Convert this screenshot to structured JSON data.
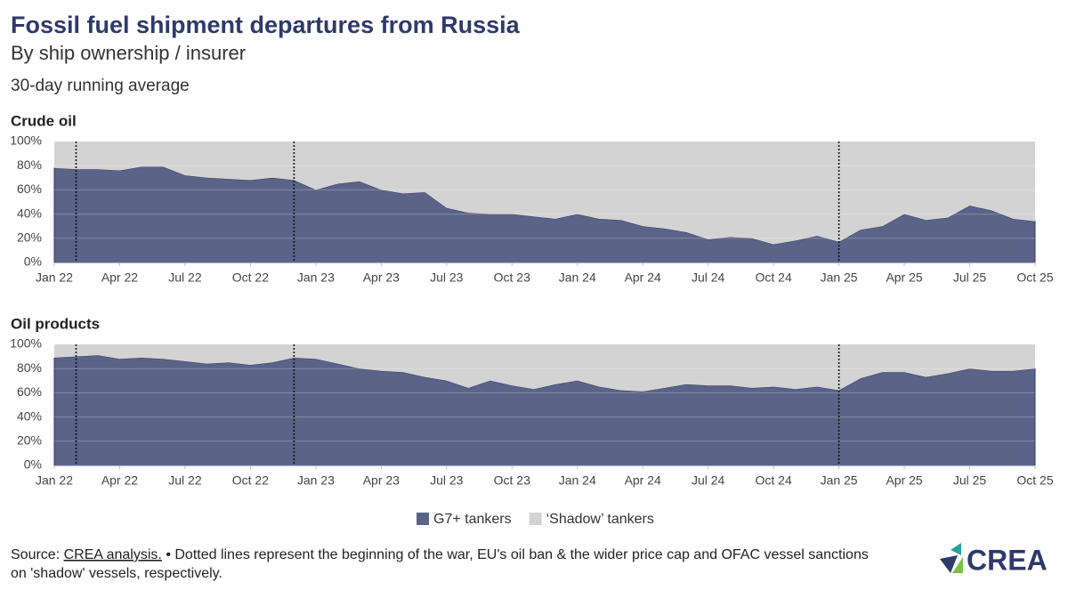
{
  "title": "Fossil fuel shipment departures from Russia",
  "subtitle": "By ship ownership / insurer",
  "note": "30-day running average",
  "source_label": "Source:",
  "source_link": "CREA analysis.",
  "source_text": "• Dotted lines represent the beginning of the war, EU's oil ban & the wider price cap and OFAC vessel sanctions on 'shadow' vessels, respectively.",
  "logo": "CREA",
  "chart_data": [
    {
      "type": "stacked_area",
      "title": "Crude oil",
      "x": [
        "2022-01",
        "2022-02",
        "2022-03",
        "2022-04",
        "2022-05",
        "2022-06",
        "2022-07",
        "2022-08",
        "2022-09",
        "2022-10",
        "2022-11",
        "2022-12",
        "2023-01",
        "2023-02",
        "2023-03",
        "2023-04",
        "2023-05",
        "2023-06",
        "2023-07",
        "2023-08",
        "2023-09",
        "2023-10",
        "2023-11",
        "2023-12",
        "2024-01",
        "2024-02",
        "2024-03",
        "2024-04",
        "2024-05",
        "2024-06",
        "2024-07",
        "2024-08",
        "2024-09",
        "2024-10",
        "2024-11",
        "2024-12",
        "2025-01",
        "2025-02",
        "2025-03",
        "2025-04",
        "2025-05",
        "2025-06",
        "2025-07",
        "2025-08",
        "2025-09",
        "2025-10"
      ],
      "series": [
        {
          "name": "G7+ tankers",
          "color": "#5b6388",
          "values": [
            78,
            77,
            77,
            76,
            79,
            79,
            72,
            70,
            69,
            68,
            70,
            68,
            60,
            65,
            67,
            60,
            57,
            58,
            45,
            41,
            40,
            40,
            38,
            36,
            40,
            36,
            35,
            30,
            28,
            25,
            19,
            21,
            20,
            15,
            18,
            22,
            17,
            27,
            30,
            40,
            35,
            37,
            47,
            43,
            36,
            34
          ]
        },
        {
          "name": "‘Shadow’ tankers",
          "color": "#d3d3d3",
          "values": [
            22,
            23,
            23,
            24,
            21,
            21,
            28,
            30,
            31,
            32,
            30,
            32,
            40,
            35,
            33,
            40,
            43,
            42,
            55,
            59,
            60,
            60,
            62,
            64,
            60,
            64,
            65,
            70,
            72,
            75,
            81,
            79,
            80,
            85,
            82,
            78,
            83,
            73,
            70,
            60,
            65,
            63,
            53,
            57,
            64,
            66
          ]
        }
      ],
      "events": [
        "2022-02",
        "2022-12",
        "2025-01"
      ],
      "xlim": [
        "2022-01",
        "2025-10"
      ],
      "xticks": [
        {
          "value": "2022-01",
          "label": "Jan 22"
        },
        {
          "value": "2022-04",
          "label": "Apr 22"
        },
        {
          "value": "2022-07",
          "label": "Jul 22"
        },
        {
          "value": "2022-10",
          "label": "Oct 22"
        },
        {
          "value": "2023-01",
          "label": "Jan 23"
        },
        {
          "value": "2023-04",
          "label": "Apr 23"
        },
        {
          "value": "2023-07",
          "label": "Jul 23"
        },
        {
          "value": "2023-10",
          "label": "Oct 23"
        },
        {
          "value": "2024-01",
          "label": "Jan 24"
        },
        {
          "value": "2024-04",
          "label": "Apr 24"
        },
        {
          "value": "2024-07",
          "label": "Jul 24"
        },
        {
          "value": "2024-10",
          "label": "Oct 24"
        },
        {
          "value": "2025-01",
          "label": "Jan 25"
        },
        {
          "value": "2025-04",
          "label": "Apr 25"
        },
        {
          "value": "2025-07",
          "label": "Jul 25"
        },
        {
          "value": "2025-10",
          "label": "Oct 25"
        }
      ],
      "ylim": [
        0,
        100
      ],
      "yticks": [
        {
          "value": 0,
          "label": "0%"
        },
        {
          "value": 20,
          "label": "20%"
        },
        {
          "value": 40,
          "label": "40%"
        },
        {
          "value": 60,
          "label": "60%"
        },
        {
          "value": 80,
          "label": "80%"
        },
        {
          "value": 100,
          "label": "100%"
        }
      ]
    },
    {
      "type": "stacked_area",
      "title": "Oil products",
      "x": [
        "2022-01",
        "2022-02",
        "2022-03",
        "2022-04",
        "2022-05",
        "2022-06",
        "2022-07",
        "2022-08",
        "2022-09",
        "2022-10",
        "2022-11",
        "2022-12",
        "2023-01",
        "2023-02",
        "2023-03",
        "2023-04",
        "2023-05",
        "2023-06",
        "2023-07",
        "2023-08",
        "2023-09",
        "2023-10",
        "2023-11",
        "2023-12",
        "2024-01",
        "2024-02",
        "2024-03",
        "2024-04",
        "2024-05",
        "2024-06",
        "2024-07",
        "2024-08",
        "2024-09",
        "2024-10",
        "2024-11",
        "2024-12",
        "2025-01",
        "2025-02",
        "2025-03",
        "2025-04",
        "2025-05",
        "2025-06",
        "2025-07",
        "2025-08",
        "2025-09",
        "2025-10"
      ],
      "series": [
        {
          "name": "G7+ tankers",
          "color": "#5b6388",
          "values": [
            89,
            90,
            91,
            88,
            89,
            88,
            86,
            84,
            85,
            83,
            85,
            89,
            88,
            84,
            80,
            78,
            77,
            73,
            70,
            64,
            70,
            66,
            63,
            67,
            70,
            65,
            62,
            61,
            64,
            67,
            66,
            66,
            64,
            65,
            63,
            65,
            62,
            72,
            77,
            77,
            73,
            76,
            80,
            78,
            78,
            80
          ]
        },
        {
          "name": "‘Shadow’ tankers",
          "color": "#d3d3d3",
          "values": [
            11,
            10,
            9,
            12,
            11,
            12,
            14,
            16,
            15,
            17,
            15,
            11,
            12,
            16,
            20,
            22,
            23,
            27,
            30,
            36,
            30,
            34,
            37,
            33,
            30,
            35,
            38,
            39,
            36,
            33,
            34,
            34,
            36,
            35,
            37,
            35,
            38,
            28,
            23,
            23,
            27,
            24,
            20,
            22,
            22,
            20
          ]
        }
      ],
      "events": [
        "2022-02",
        "2022-12",
        "2025-01"
      ],
      "xlim": [
        "2022-01",
        "2025-10"
      ],
      "xticks": [
        {
          "value": "2022-01",
          "label": "Jan 22"
        },
        {
          "value": "2022-04",
          "label": "Apr 22"
        },
        {
          "value": "2022-07",
          "label": "Jul 22"
        },
        {
          "value": "2022-10",
          "label": "Oct 22"
        },
        {
          "value": "2023-01",
          "label": "Jan 23"
        },
        {
          "value": "2023-04",
          "label": "Apr 23"
        },
        {
          "value": "2023-07",
          "label": "Jul 23"
        },
        {
          "value": "2023-10",
          "label": "Oct 23"
        },
        {
          "value": "2024-01",
          "label": "Jan 24"
        },
        {
          "value": "2024-04",
          "label": "Apr 24"
        },
        {
          "value": "2024-07",
          "label": "Jul 24"
        },
        {
          "value": "2024-10",
          "label": "Oct 24"
        },
        {
          "value": "2025-01",
          "label": "Jan 25"
        },
        {
          "value": "2025-04",
          "label": "Apr 25"
        },
        {
          "value": "2025-07",
          "label": "Jul 25"
        },
        {
          "value": "2025-10",
          "label": "Oct 25"
        }
      ],
      "ylim": [
        0,
        100
      ],
      "yticks": [
        {
          "value": 0,
          "label": "0%"
        },
        {
          "value": 20,
          "label": "20%"
        },
        {
          "value": 40,
          "label": "40%"
        },
        {
          "value": 60,
          "label": "60%"
        },
        {
          "value": 80,
          "label": "80%"
        },
        {
          "value": 100,
          "label": "100%"
        }
      ]
    }
  ]
}
